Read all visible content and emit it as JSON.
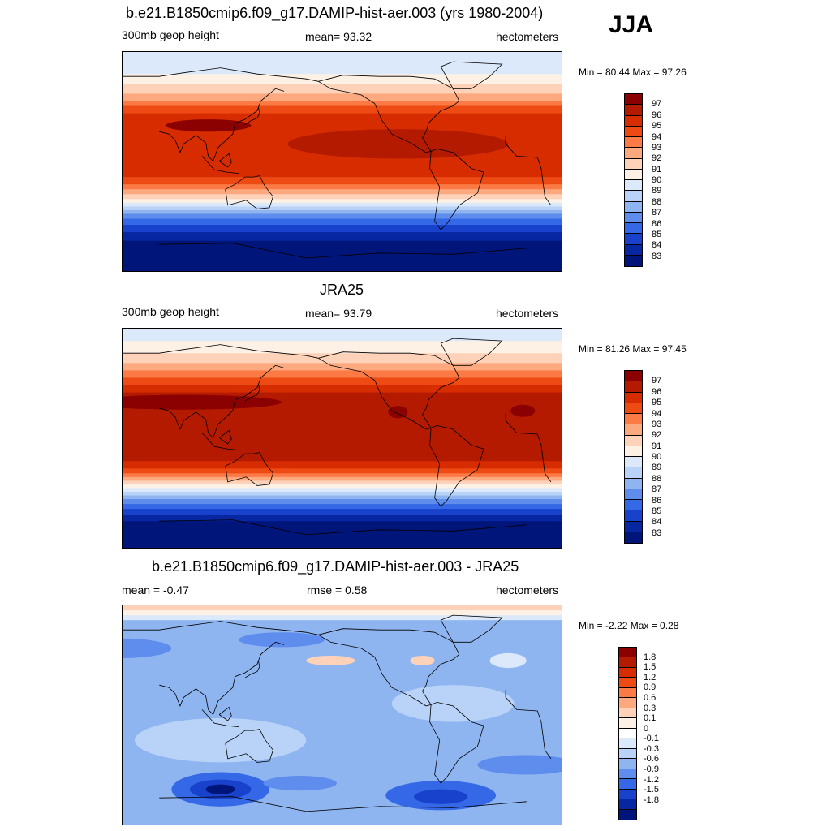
{
  "season": "JJA",
  "panels": [
    {
      "title": "b.e21.B1850cmip6.f09_g17.DAMIP-hist-aer.003 (yrs 1980-2004)",
      "left_label": "300mb geop height",
      "center_label": "mean=  93.32",
      "units": "hectometers",
      "minmax": "Min =  80.44 Max =  97.26",
      "colorbar_labels": [
        "97",
        "96",
        "95",
        "94",
        "93",
        "92",
        "91",
        "90",
        "89",
        "88",
        "87",
        "86",
        "85",
        "84",
        "83"
      ],
      "colorbar_colors": [
        "#8b0000",
        "#b31a00",
        "#d62c00",
        "#ee4a13",
        "#fb7a45",
        "#fda97f",
        "#fdd2b9",
        "#fdf0e4",
        "#dbe9fb",
        "#b9d3f8",
        "#8fb5f1",
        "#5e8ded",
        "#3568e6",
        "#1842cc",
        "#0626a2",
        "#00157a"
      ],
      "bands": [
        {
          "lat_top": 90,
          "lat_bot": 72,
          "color": "#dbe9fb"
        },
        {
          "lat_top": 72,
          "lat_bot": 64,
          "color": "#fdf0e4"
        },
        {
          "lat_top": 64,
          "lat_bot": 56,
          "color": "#fdd2b9"
        },
        {
          "lat_top": 56,
          "lat_bot": 50,
          "color": "#fda97f"
        },
        {
          "lat_top": 50,
          "lat_bot": 46,
          "color": "#fb7a45"
        },
        {
          "lat_top": 46,
          "lat_bot": 40,
          "color": "#ee4a13"
        },
        {
          "lat_top": 40,
          "lat_bot": -12,
          "color": "#d62c00"
        },
        {
          "lat_top": -12,
          "lat_bot": -18,
          "color": "#ee4a13"
        },
        {
          "lat_top": -18,
          "lat_bot": -22,
          "color": "#fb7a45"
        },
        {
          "lat_top": -22,
          "lat_bot": -26,
          "color": "#fda97f"
        },
        {
          "lat_top": -26,
          "lat_bot": -30,
          "color": "#fdd2b9"
        },
        {
          "lat_top": -30,
          "lat_bot": -33,
          "color": "#fdf0e4"
        },
        {
          "lat_top": -33,
          "lat_bot": -36,
          "color": "#dbe9fb"
        },
        {
          "lat_top": -36,
          "lat_bot": -39,
          "color": "#b9d3f8"
        },
        {
          "lat_top": -39,
          "lat_bot": -42,
          "color": "#8fb5f1"
        },
        {
          "lat_top": -42,
          "lat_bot": -46,
          "color": "#5e8ded"
        },
        {
          "lat_top": -46,
          "lat_bot": -51,
          "color": "#3568e6"
        },
        {
          "lat_top": -51,
          "lat_bot": -57,
          "color": "#1842cc"
        },
        {
          "lat_top": -57,
          "lat_bot": -64,
          "color": "#0626a2"
        },
        {
          "lat_top": -64,
          "lat_bot": -90,
          "color": "#00157a"
        }
      ],
      "blobs": [
        {
          "lon": 255,
          "lat": 15,
          "rlon": 90,
          "rlat": 12,
          "color": "#b31a00"
        },
        {
          "lon": 100,
          "lat": 30,
          "rlon": 35,
          "rlat": 5,
          "color": "#8b0000"
        }
      ]
    },
    {
      "title": "JRA25",
      "left_label": "300mb geop height",
      "center_label": "mean=  93.79",
      "units": "hectometers",
      "minmax": "Min =  81.26 Max =  97.45",
      "colorbar_labels": [
        "97",
        "96",
        "95",
        "94",
        "93",
        "92",
        "91",
        "90",
        "89",
        "88",
        "87",
        "86",
        "85",
        "84",
        "83"
      ],
      "colorbar_colors": [
        "#8b0000",
        "#b31a00",
        "#d62c00",
        "#ee4a13",
        "#fb7a45",
        "#fda97f",
        "#fdd2b9",
        "#fdf0e4",
        "#dbe9fb",
        "#b9d3f8",
        "#8fb5f1",
        "#5e8ded",
        "#3568e6",
        "#1842cc",
        "#0626a2",
        "#00157a"
      ],
      "bands": [
        {
          "lat_top": 90,
          "lat_bot": 80,
          "color": "#dbe9fb"
        },
        {
          "lat_top": 80,
          "lat_bot": 70,
          "color": "#fdf0e4"
        },
        {
          "lat_top": 70,
          "lat_bot": 62,
          "color": "#fdd2b9"
        },
        {
          "lat_top": 62,
          "lat_bot": 56,
          "color": "#fda97f"
        },
        {
          "lat_top": 56,
          "lat_bot": 50,
          "color": "#fb7a45"
        },
        {
          "lat_top": 50,
          "lat_bot": 44,
          "color": "#ee4a13"
        },
        {
          "lat_top": 44,
          "lat_bot": 38,
          "color": "#d62c00"
        },
        {
          "lat_top": 38,
          "lat_bot": -18,
          "color": "#b31a00"
        },
        {
          "lat_top": -18,
          "lat_bot": -24,
          "color": "#d62c00"
        },
        {
          "lat_top": -24,
          "lat_bot": -28,
          "color": "#ee4a13"
        },
        {
          "lat_top": -28,
          "lat_bot": -31,
          "color": "#fb7a45"
        },
        {
          "lat_top": -31,
          "lat_bot": -34,
          "color": "#fda97f"
        },
        {
          "lat_top": -34,
          "lat_bot": -37,
          "color": "#fdd2b9"
        },
        {
          "lat_top": -37,
          "lat_bot": -40,
          "color": "#fdf0e4"
        },
        {
          "lat_top": -40,
          "lat_bot": -43,
          "color": "#dbe9fb"
        },
        {
          "lat_top": -43,
          "lat_bot": -46,
          "color": "#b9d3f8"
        },
        {
          "lat_top": -46,
          "lat_bot": -49,
          "color": "#8fb5f1"
        },
        {
          "lat_top": -49,
          "lat_bot": -53,
          "color": "#5e8ded"
        },
        {
          "lat_top": -53,
          "lat_bot": -57,
          "color": "#3568e6"
        },
        {
          "lat_top": -57,
          "lat_bot": -62,
          "color": "#1842cc"
        },
        {
          "lat_top": -62,
          "lat_bot": -67,
          "color": "#0626a2"
        },
        {
          "lat_top": -67,
          "lat_bot": -90,
          "color": "#00157a"
        }
      ],
      "blobs": [
        {
          "lon": 80,
          "lat": 30,
          "rlon": 80,
          "rlat": 6,
          "color": "#8b0000"
        },
        {
          "lon": 255,
          "lat": 22,
          "rlon": 8,
          "rlat": 5,
          "color": "#8b0000"
        },
        {
          "lon": 357,
          "lat": 23,
          "rlon": 10,
          "rlat": 5,
          "color": "#8b0000"
        }
      ]
    },
    {
      "title": "b.e21.B1850cmip6.f09_g17.DAMIP-hist-aer.003 - JRA25",
      "left_label": "mean =  -0.47",
      "center_label": "rmse =   0.58",
      "units": "hectometers",
      "minmax": "Min =  -2.22 Max =   0.28",
      "colorbar_labels": [
        "1.8",
        "1.5",
        "1.2",
        "0.9",
        "0.6",
        "0.3",
        "0.1",
        "0",
        "-0.1",
        "-0.3",
        "-0.6",
        "-0.9",
        "-1.2",
        "-1.5",
        "-1.8"
      ],
      "colorbar_colors": [
        "#8b0000",
        "#b31a00",
        "#d62c00",
        "#ee4a13",
        "#fb7a45",
        "#fda97f",
        "#fdd2b9",
        "#fdf0e4",
        "#ffffff",
        "#dbe9fb",
        "#b9d3f8",
        "#8fb5f1",
        "#5e8ded",
        "#3568e6",
        "#1842cc",
        "#0626a2",
        "#00157a"
      ],
      "bands": [
        {
          "lat_top": 90,
          "lat_bot": 86,
          "color": "#fdd2b9"
        },
        {
          "lat_top": 86,
          "lat_bot": 82,
          "color": "#fdf0e4"
        },
        {
          "lat_top": 82,
          "lat_bot": 78,
          "color": "#dbe9fb"
        },
        {
          "lat_top": 78,
          "lat_bot": -90,
          "color": "#8fb5f1"
        }
      ],
      "blobs": [
        {
          "lon": 110,
          "lat": -20,
          "rlon": 70,
          "rlat": 18,
          "color": "#b9d3f8"
        },
        {
          "lon": 300,
          "lat": 10,
          "rlon": 50,
          "rlat": 15,
          "color": "#b9d3f8"
        },
        {
          "lon": 30,
          "lat": 55,
          "rlon": 40,
          "rlat": 8,
          "color": "#5e8ded"
        },
        {
          "lon": 160,
          "lat": 62,
          "rlon": 35,
          "rlat": 6,
          "color": "#5e8ded"
        },
        {
          "lon": 345,
          "lat": 45,
          "rlon": 15,
          "rlat": 6,
          "color": "#dbe9fb"
        },
        {
          "lon": 200,
          "lat": 45,
          "rlon": 20,
          "rlat": 4,
          "color": "#fdd2b9"
        },
        {
          "lon": 275,
          "lat": 45,
          "rlon": 10,
          "rlat": 4,
          "color": "#fdd2b9"
        },
        {
          "lon": 110,
          "lat": -60,
          "rlon": 40,
          "rlat": 14,
          "color": "#3568e6"
        },
        {
          "lon": 110,
          "lat": -60,
          "rlon": 25,
          "rlat": 8,
          "color": "#1842cc"
        },
        {
          "lon": 110,
          "lat": -60,
          "rlon": 12,
          "rlat": 4,
          "color": "#00157a"
        },
        {
          "lon": 290,
          "lat": -65,
          "rlon": 45,
          "rlat": 12,
          "color": "#3568e6"
        },
        {
          "lon": 290,
          "lat": -66,
          "rlon": 22,
          "rlat": 6,
          "color": "#1842cc"
        },
        {
          "lon": 175,
          "lat": -55,
          "rlon": 30,
          "rlat": 6,
          "color": "#5e8ded"
        },
        {
          "lon": 0,
          "lat": -40,
          "rlon": 40,
          "rlat": 8,
          "color": "#5e8ded"
        }
      ]
    }
  ]
}
